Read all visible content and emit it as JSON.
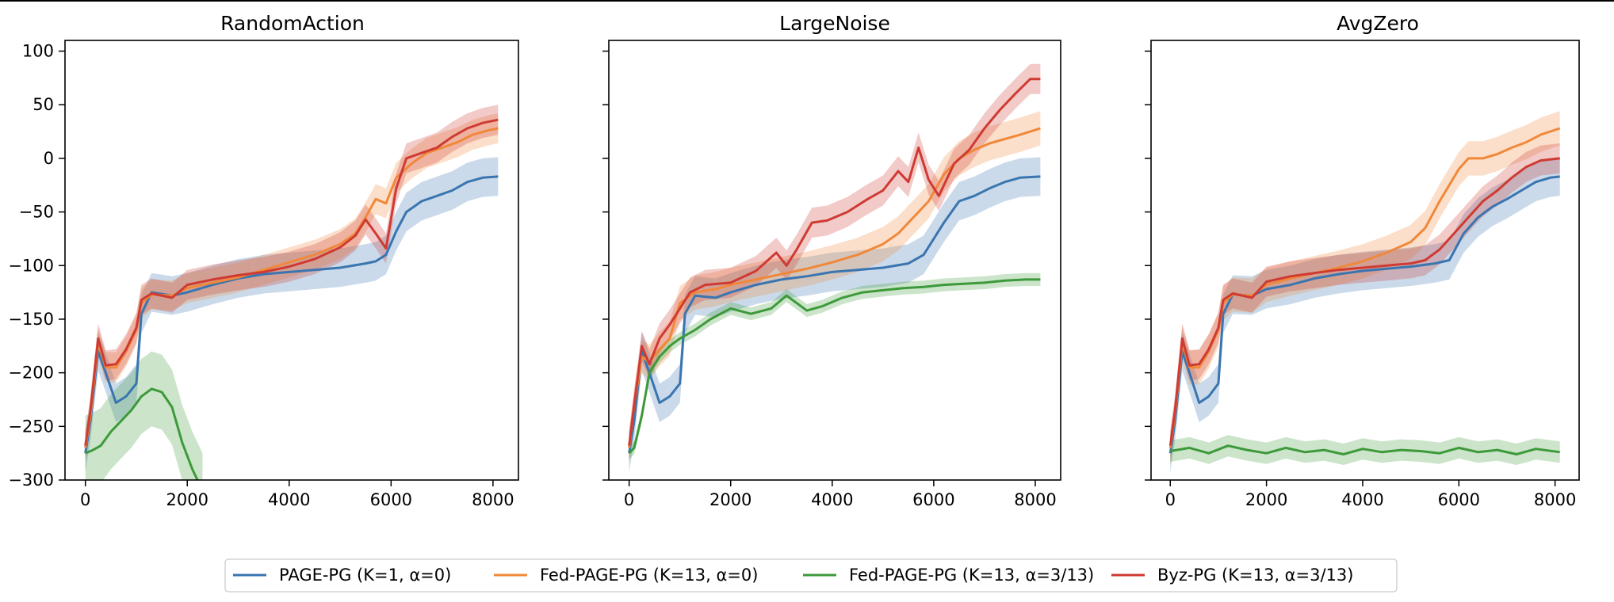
{
  "chart_data": [
    {
      "type": "line",
      "title": "RandomAction",
      "xlim": [
        -400,
        8500
      ],
      "ylim": [
        -300,
        110
      ],
      "xticks": [
        0,
        2000,
        4000,
        6000,
        8000
      ],
      "yticks": [
        -300,
        -250,
        -200,
        -150,
        -100,
        -50,
        0,
        50,
        100
      ],
      "ytick_labels_shown": true,
      "series": [
        {
          "name": "PAGE-PG (K=1, α=0)",
          "color": "#3a75b0",
          "band": 18,
          "x": [
            0,
            100,
            250,
            400,
            600,
            800,
            1000,
            1100,
            1300,
            1700,
            2000,
            2500,
            3000,
            3500,
            4000,
            4500,
            5000,
            5500,
            5700,
            5900,
            6100,
            6300,
            6600,
            6900,
            7200,
            7500,
            7800,
            8100
          ],
          "y": [
            -275,
            -245,
            -180,
            -200,
            -228,
            -222,
            -210,
            -145,
            -125,
            -128,
            -125,
            -118,
            -112,
            -108,
            -106,
            -104,
            -102,
            -98,
            -96,
            -90,
            -68,
            -50,
            -40,
            -35,
            -30,
            -22,
            -18,
            -17
          ]
        },
        {
          "name": "Fed-PAGE-PG (K=13, α=0)",
          "color": "#f0883a",
          "band": 14,
          "x": [
            0,
            100,
            250,
            400,
            600,
            800,
            1000,
            1100,
            1300,
            1700,
            2000,
            2500,
            3000,
            3500,
            4000,
            4500,
            5000,
            5300,
            5500,
            5700,
            5900,
            6100,
            6400,
            6700,
            7000,
            7300,
            7600,
            7900,
            8100
          ],
          "y": [
            -270,
            -240,
            -172,
            -195,
            -195,
            -180,
            -160,
            -135,
            -127,
            -128,
            -121,
            -116,
            -111,
            -104,
            -97,
            -90,
            -80,
            -70,
            -55,
            -38,
            -42,
            -18,
            -5,
            5,
            10,
            15,
            22,
            26,
            28
          ]
        },
        {
          "name": "Fed-PAGE-PG (K=13, α=3/13)",
          "color": "#3d9a3a",
          "band": 35,
          "x": [
            0,
            150,
            300,
            500,
            700,
            900,
            1100,
            1300,
            1500,
            1700,
            1900,
            2100,
            2300
          ],
          "y": [
            -275,
            -272,
            -268,
            -255,
            -245,
            -235,
            -222,
            -215,
            -218,
            -232,
            -265,
            -290,
            -310
          ]
        },
        {
          "name": "Byz-PG (K=13, α=3/13)",
          "color": "#cf3a32",
          "band": 14,
          "x": [
            0,
            100,
            250,
            400,
            600,
            800,
            1000,
            1100,
            1300,
            1700,
            2000,
            2500,
            3000,
            3500,
            4000,
            4500,
            5000,
            5300,
            5500,
            5700,
            5900,
            6100,
            6300,
            6600,
            6900,
            7200,
            7500,
            7800,
            8100
          ],
          "y": [
            -268,
            -235,
            -168,
            -193,
            -192,
            -178,
            -158,
            -132,
            -126,
            -130,
            -118,
            -113,
            -109,
            -106,
            -101,
            -94,
            -83,
            -72,
            -57,
            -70,
            -84,
            -28,
            0,
            5,
            10,
            20,
            28,
            33,
            36
          ]
        }
      ]
    },
    {
      "type": "line",
      "title": "LargeNoise",
      "xlim": [
        -400,
        8500
      ],
      "ylim": [
        -300,
        110
      ],
      "xticks": [
        0,
        2000,
        4000,
        6000,
        8000
      ],
      "yticks": [
        -300,
        -250,
        -200,
        -150,
        -100,
        -50,
        0,
        50,
        100
      ],
      "ytick_labels_shown": false,
      "series": [
        {
          "name": "PAGE-PG (K=1, α=0)",
          "color": "#3a75b0",
          "band": 18,
          "x": [
            0,
            100,
            250,
            400,
            600,
            800,
            1000,
            1100,
            1300,
            1700,
            2000,
            2500,
            3000,
            3500,
            4000,
            4500,
            5000,
            5500,
            5800,
            6000,
            6200,
            6500,
            6800,
            7100,
            7400,
            7700,
            8100
          ],
          "y": [
            -275,
            -245,
            -180,
            -200,
            -228,
            -222,
            -210,
            -145,
            -128,
            -130,
            -125,
            -118,
            -113,
            -110,
            -106,
            -104,
            -102,
            -98,
            -90,
            -75,
            -60,
            -40,
            -35,
            -28,
            -22,
            -18,
            -17
          ]
        },
        {
          "name": "Fed-PAGE-PG (K=13, α=0)",
          "color": "#f0883a",
          "band": 16,
          "x": [
            0,
            100,
            250,
            400,
            600,
            800,
            1000,
            1300,
            1700,
            2000,
            2500,
            3000,
            3500,
            4000,
            4500,
            5000,
            5300,
            5600,
            5900,
            6200,
            6500,
            6800,
            7100,
            7400,
            7700,
            8100
          ],
          "y": [
            -270,
            -230,
            -185,
            -190,
            -178,
            -168,
            -135,
            -125,
            -122,
            -118,
            -113,
            -108,
            -103,
            -97,
            -90,
            -80,
            -70,
            -55,
            -40,
            -15,
            0,
            8,
            14,
            18,
            22,
            28
          ]
        },
        {
          "name": "Fed-PAGE-PG (K=13, α=3/13)",
          "color": "#3d9a3a",
          "band": 6,
          "x": [
            0,
            100,
            250,
            400,
            600,
            800,
            1000,
            1300,
            1600,
            2000,
            2400,
            2800,
            3100,
            3300,
            3500,
            3800,
            4200,
            4600,
            5000,
            5400,
            5800,
            6200,
            6600,
            7000,
            7400,
            7800,
            8100
          ],
          "y": [
            -275,
            -270,
            -240,
            -200,
            -185,
            -175,
            -168,
            -160,
            -150,
            -140,
            -145,
            -140,
            -128,
            -135,
            -142,
            -138,
            -130,
            -125,
            -123,
            -121,
            -120,
            -118,
            -117,
            -116,
            -114,
            -113,
            -113
          ]
        },
        {
          "name": "Byz-PG (K=13, α=3/13)",
          "color": "#cf3a32",
          "band": 14,
          "x": [
            0,
            100,
            250,
            400,
            600,
            800,
            1000,
            1200,
            1500,
            2000,
            2500,
            2900,
            3100,
            3300,
            3600,
            3900,
            4300,
            4700,
            5000,
            5300,
            5500,
            5700,
            5900,
            6100,
            6400,
            6700,
            7000,
            7300,
            7600,
            7900,
            8100
          ],
          "y": [
            -268,
            -230,
            -175,
            -192,
            -168,
            -155,
            -140,
            -125,
            -118,
            -116,
            -105,
            -88,
            -100,
            -85,
            -60,
            -58,
            -50,
            -38,
            -30,
            -12,
            -22,
            10,
            -20,
            -35,
            -5,
            8,
            28,
            45,
            60,
            74,
            74
          ]
        }
      ]
    },
    {
      "type": "line",
      "title": "AvgZero",
      "xlim": [
        -400,
        8500
      ],
      "ylim": [
        -300,
        110
      ],
      "xticks": [
        0,
        2000,
        4000,
        6000,
        8000
      ],
      "yticks": [
        -300,
        -250,
        -200,
        -150,
        -100,
        -50,
        0,
        50,
        100
      ],
      "ytick_labels_shown": false,
      "series": [
        {
          "name": "PAGE-PG (K=1, α=0)",
          "color": "#3a75b0",
          "band": 18,
          "x": [
            0,
            100,
            250,
            400,
            600,
            800,
            1000,
            1100,
            1300,
            1700,
            2000,
            2500,
            3000,
            3500,
            4000,
            4500,
            5000,
            5500,
            5800,
            6100,
            6400,
            6700,
            7000,
            7300,
            7600,
            7900,
            8100
          ],
          "y": [
            -275,
            -245,
            -180,
            -200,
            -228,
            -222,
            -210,
            -145,
            -127,
            -128,
            -122,
            -118,
            -112,
            -108,
            -105,
            -103,
            -101,
            -98,
            -95,
            -70,
            -55,
            -45,
            -38,
            -30,
            -22,
            -18,
            -17
          ]
        },
        {
          "name": "Fed-PAGE-PG (K=13, α=0)",
          "color": "#f0883a",
          "band": 16,
          "x": [
            0,
            100,
            250,
            400,
            600,
            800,
            1000,
            1100,
            1300,
            1700,
            2000,
            2500,
            3000,
            3500,
            4000,
            4500,
            5000,
            5300,
            5600,
            5800,
            6000,
            6200,
            6500,
            6800,
            7100,
            7400,
            7700,
            8100
          ],
          "y": [
            -270,
            -238,
            -172,
            -195,
            -195,
            -180,
            -160,
            -135,
            -127,
            -128,
            -118,
            -112,
            -107,
            -102,
            -96,
            -88,
            -78,
            -65,
            -40,
            -25,
            -10,
            0,
            0,
            4,
            10,
            15,
            22,
            28
          ]
        },
        {
          "name": "Fed-PAGE-PG (K=13, α=3/13)",
          "color": "#3d9a3a",
          "band": 10,
          "x": [
            0,
            400,
            800,
            1200,
            1600,
            2000,
            2400,
            2800,
            3200,
            3600,
            4000,
            4400,
            4800,
            5200,
            5600,
            6000,
            6400,
            6800,
            7200,
            7600,
            8100
          ],
          "y": [
            -273,
            -270,
            -275,
            -268,
            -272,
            -275,
            -270,
            -274,
            -272,
            -276,
            -271,
            -274,
            -272,
            -273,
            -275,
            -270,
            -274,
            -272,
            -276,
            -271,
            -274
          ]
        },
        {
          "name": "Byz-PG (K=13, α=3/13)",
          "color": "#cf3a32",
          "band": 14,
          "x": [
            0,
            100,
            250,
            400,
            600,
            800,
            1000,
            1100,
            1300,
            1700,
            2000,
            2500,
            3000,
            3500,
            4000,
            4500,
            5000,
            5300,
            5600,
            5900,
            6200,
            6500,
            6800,
            7100,
            7400,
            7700,
            8100
          ],
          "y": [
            -268,
            -235,
            -168,
            -193,
            -192,
            -178,
            -158,
            -132,
            -126,
            -130,
            -115,
            -110,
            -107,
            -104,
            -102,
            -100,
            -98,
            -95,
            -85,
            -70,
            -55,
            -40,
            -30,
            -18,
            -8,
            -2,
            0
          ]
        }
      ]
    }
  ],
  "legend": {
    "placement": "bottom-center",
    "items": [
      {
        "label": "PAGE-PG (K=1, α=0)",
        "color": "#3a75b0"
      },
      {
        "label": "Fed-PAGE-PG (K=13, α=0)",
        "color": "#f0883a"
      },
      {
        "label": "Fed-PAGE-PG (K=13, α=3/13)",
        "color": "#3d9a3a"
      },
      {
        "label": "Byz-PG (K=13, α=3/13)",
        "color": "#cf3a32"
      }
    ]
  }
}
